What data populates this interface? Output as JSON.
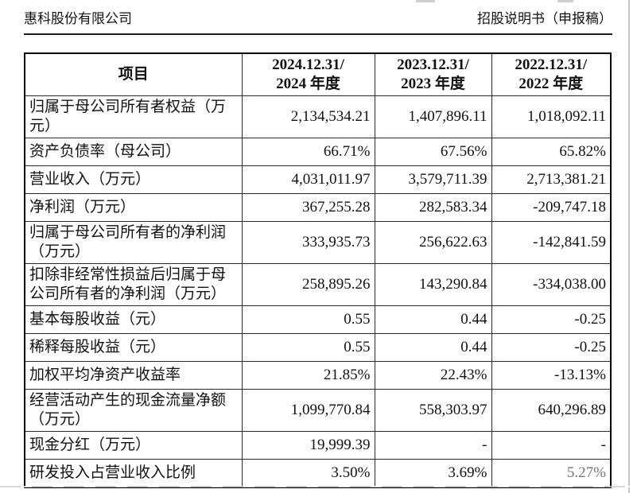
{
  "page": {
    "company_name": "惠科股份有限公司",
    "doc_label": "招股说明书（申报稿）"
  },
  "table": {
    "header": {
      "item": "项目",
      "p2024": "2024.12.31/\n2024 年度",
      "p2023": "2023.12.31/\n2023 年度",
      "p2022": "2022.12.31/\n2022 年度"
    },
    "rows": [
      {
        "label": "归属于母公司所有者权益（万元）",
        "y2024": "2,134,534.21",
        "y2023": "1,407,896.11",
        "y2022": "1,018,092.11"
      },
      {
        "label": "资产负债率（母公司）",
        "y2024": "66.71%",
        "y2023": "67.56%",
        "y2022": "65.82%"
      },
      {
        "label": "营业收入（万元）",
        "y2024": "4,031,011.97",
        "y2023": "3,579,711.39",
        "y2022": "2,713,381.21"
      },
      {
        "label": "净利润（万元）",
        "y2024": "367,255.28",
        "y2023": "282,583.34",
        "y2022": "-209,747.18"
      },
      {
        "label": "归属于母公司所有者的净利润（万元）",
        "y2024": "333,935.73",
        "y2023": "256,622.63",
        "y2022": "-142,841.59"
      },
      {
        "label": "扣除非经常性损益后归属于母公司所有者的净利润（万元）",
        "y2024": "258,895.26",
        "y2023": "143,290.84",
        "y2022": "-334,038.00"
      },
      {
        "label": "基本每股收益（元）",
        "y2024": "0.55",
        "y2023": "0.44",
        "y2022": "-0.25"
      },
      {
        "label": "稀释每股收益（元）",
        "y2024": "0.55",
        "y2023": "0.44",
        "y2022": "-0.25"
      },
      {
        "label": "加权平均净资产收益率",
        "y2024": "21.85%",
        "y2023": "22.43%",
        "y2022": "-13.13%"
      },
      {
        "label": "经营活动产生的现金流量净额（万元）",
        "y2024": "1,099,770.84",
        "y2023": "558,303.97",
        "y2022": "640,296.89"
      },
      {
        "label": "现金分红（万元）",
        "y2024": "19,999.39",
        "y2023": "-",
        "y2022": "-"
      },
      {
        "label": "研发投入占营业收入比例",
        "y2024": "3.50%",
        "y2023": "3.69%",
        "y2022": "5.27%"
      }
    ]
  }
}
